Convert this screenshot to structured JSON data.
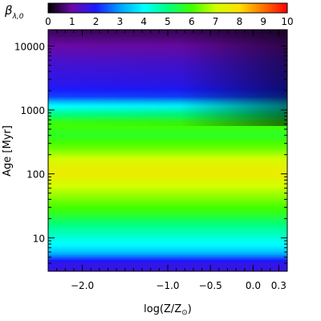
{
  "chart_data": {
    "type": "heatmap",
    "colorbar": {
      "label": "β",
      "label_subscript": "λ,0",
      "range": [
        0,
        10
      ],
      "ticks": [
        "0",
        "1",
        "2",
        "3",
        "4",
        "5",
        "6",
        "7",
        "8",
        "9",
        "10"
      ],
      "position": "top",
      "colormap_stops": [
        {
          "value": 0,
          "color": "#000000"
        },
        {
          "value": 1,
          "color": "#6a0aa8"
        },
        {
          "value": 2,
          "color": "#1a1aff"
        },
        {
          "value": 3,
          "color": "#00a0ff"
        },
        {
          "value": 4,
          "color": "#00ffff"
        },
        {
          "value": 5,
          "color": "#00ff80"
        },
        {
          "value": 6,
          "color": "#40ff00"
        },
        {
          "value": 7,
          "color": "#d0ff00"
        },
        {
          "value": 8,
          "color": "#ffe000"
        },
        {
          "value": 9,
          "color": "#ff7000"
        },
        {
          "value": 10,
          "color": "#ff0000"
        }
      ]
    },
    "xaxis": {
      "label_prefix": "log(Z/Z",
      "label_sun": "⊙",
      "label_suffix": ")",
      "range": [
        -2.4,
        0.4
      ],
      "ticks": [
        {
          "value": -2.0,
          "label": "−2.0"
        },
        {
          "value": -1.0,
          "label": "−1.0"
        },
        {
          "value": -0.5,
          "label": "−0.5"
        },
        {
          "value": 0.0,
          "label": "0.0"
        },
        {
          "value": 0.3,
          "label": "0.3"
        }
      ]
    },
    "yaxis": {
      "label_text": "Age",
      "label_unit": "Myr",
      "scale": "log",
      "range": [
        3,
        18000
      ],
      "ticks": [
        {
          "value": 10,
          "label": "10"
        },
        {
          "value": 100,
          "label": "100"
        },
        {
          "value": 1000,
          "label": "1000"
        },
        {
          "value": 10000,
          "label": "10000"
        }
      ]
    },
    "profile_by_age": [
      {
        "age": 3,
        "beta": 1.6
      },
      {
        "age": 4.2,
        "beta": 1.8
      },
      {
        "age": 5,
        "beta": 2.6
      },
      {
        "age": 6,
        "beta": 3.4
      },
      {
        "age": 7.5,
        "beta": 3.9
      },
      {
        "age": 10,
        "beta": 4.3
      },
      {
        "age": 15,
        "beta": 4.9
      },
      {
        "age": 25,
        "beta": 5.8
      },
      {
        "age": 50,
        "beta": 6.7
      },
      {
        "age": 100,
        "beta": 7.6
      },
      {
        "age": 150,
        "beta": 7.3
      },
      {
        "age": 250,
        "beta": 6.3
      },
      {
        "age": 400,
        "beta": 5.7
      },
      {
        "age": 600,
        "beta": 6.0
      },
      {
        "age": 800,
        "beta": 5.2
      },
      {
        "age": 1200,
        "beta": 3.8
      },
      {
        "age": 1600,
        "beta": 2.3
      },
      {
        "age": 2500,
        "beta": 1.8
      },
      {
        "age": 5000,
        "beta": 1.5
      },
      {
        "age": 10000,
        "beta": 1.0
      },
      {
        "age": 18000,
        "beta": 0.5
      }
    ],
    "metallicity_effect": "beta near the 1000 Myr band decreases and the old-age region darkens toward high metallicity"
  }
}
